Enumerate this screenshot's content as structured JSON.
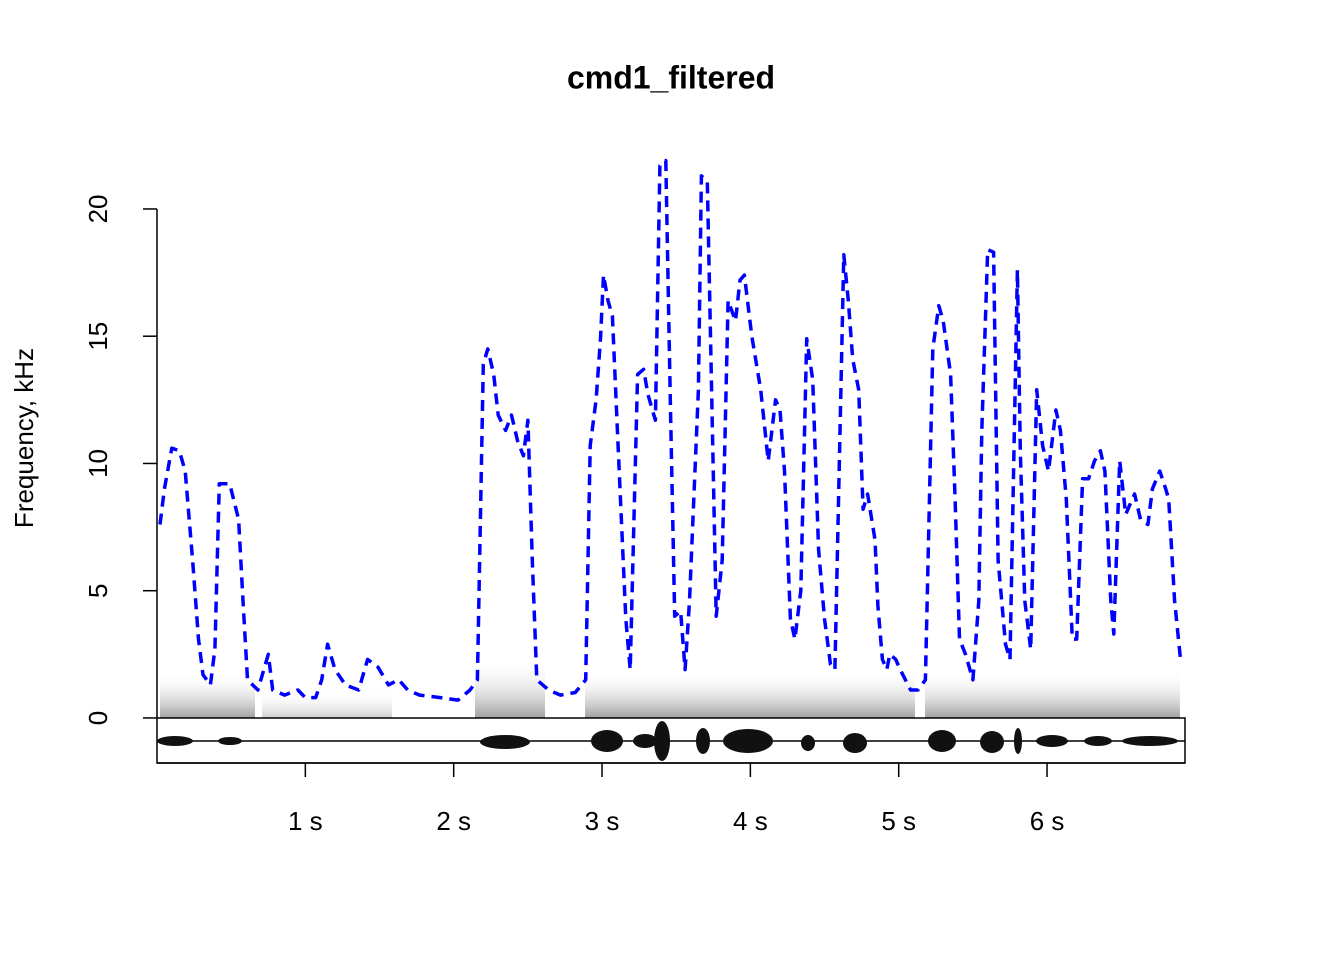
{
  "chart_data": {
    "type": "line",
    "title": "cmd1_filtered",
    "y_label": "Frequency, kHz",
    "color": "#0000ff",
    "line_style": "dashed",
    "xlim": [
      0,
      6.93
    ],
    "ylim": [
      -1.77,
      22.6
    ],
    "xticks": [
      {
        "value": 1,
        "label": "1 s"
      },
      {
        "value": 2,
        "label": "2 s"
      },
      {
        "value": 3,
        "label": "3 s"
      },
      {
        "value": 4,
        "label": "4 s"
      },
      {
        "value": 5,
        "label": "5 s"
      },
      {
        "value": 6,
        "label": "6 s"
      }
    ],
    "yticks": [
      0,
      5,
      10,
      15,
      20
    ],
    "x": [
      0.02,
      0.05,
      0.1,
      0.15,
      0.19,
      0.24,
      0.28,
      0.31,
      0.36,
      0.39,
      0.42,
      0.49,
      0.55,
      0.58,
      0.61,
      0.68,
      0.75,
      0.78,
      0.86,
      0.95,
      1.0,
      1.07,
      1.11,
      1.15,
      1.2,
      1.27,
      1.36,
      1.42,
      1.49,
      1.56,
      1.63,
      1.69,
      1.77,
      1.91,
      2.03,
      2.11,
      2.16,
      2.2,
      2.23,
      2.27,
      2.3,
      2.35,
      2.39,
      2.43,
      2.47,
      2.5,
      2.53,
      2.56,
      2.64,
      2.72,
      2.82,
      2.89,
      2.92,
      2.96,
      2.99,
      3.01,
      3.04,
      3.07,
      3.11,
      3.16,
      3.19,
      3.24,
      3.28,
      3.31,
      3.36,
      3.39,
      3.43,
      3.46,
      3.49,
      3.53,
      3.56,
      3.59,
      3.65,
      3.67,
      3.71,
      3.74,
      3.77,
      3.81,
      3.85,
      3.9,
      3.93,
      3.96,
      4.01,
      4.07,
      4.12,
      4.17,
      4.2,
      4.23,
      4.27,
      4.3,
      4.34,
      4.38,
      4.42,
      4.46,
      4.5,
      4.54,
      4.57,
      4.63,
      4.66,
      4.69,
      4.73,
      4.76,
      4.79,
      4.84,
      4.86,
      4.89,
      4.92,
      4.94,
      4.98,
      5.01,
      5.08,
      5.13,
      5.18,
      5.23,
      5.27,
      5.3,
      5.35,
      5.38,
      5.41,
      5.45,
      5.5,
      5.54,
      5.56,
      5.6,
      5.64,
      5.67,
      5.72,
      5.75,
      5.8,
      5.82,
      5.85,
      5.89,
      5.93,
      5.97,
      6.01,
      6.06,
      6.09,
      6.13,
      6.17,
      6.2,
      6.24,
      6.28,
      6.32,
      6.36,
      6.39,
      6.43,
      6.45,
      6.49,
      6.53,
      6.56,
      6.59,
      6.63,
      6.68,
      6.71,
      6.76,
      6.8,
      6.82,
      6.86,
      6.9
    ],
    "values": [
      7.6,
      9.0,
      10.6,
      10.5,
      9.7,
      6.2,
      3.1,
      1.7,
      1.3,
      2.7,
      9.2,
      9.2,
      7.8,
      4.6,
      1.5,
      1.1,
      2.5,
      1.1,
      0.9,
      1.1,
      0.8,
      0.8,
      1.5,
      2.9,
      1.9,
      1.3,
      1.1,
      2.3,
      2.0,
      1.3,
      1.5,
      1.1,
      0.9,
      0.8,
      0.7,
      1.1,
      1.5,
      13.9,
      14.5,
      13.5,
      11.9,
      11.3,
      11.9,
      10.9,
      10.3,
      11.7,
      6.2,
      1.5,
      1.1,
      0.9,
      1.0,
      1.5,
      10.7,
      12.5,
      14.9,
      17.4,
      16.4,
      15.8,
      10.5,
      3.9,
      1.9,
      13.5,
      13.7,
      12.7,
      11.7,
      21.7,
      21.9,
      12.5,
      4.0,
      4.2,
      1.9,
      4.6,
      12.9,
      21.3,
      21.1,
      12.5,
      4.0,
      6.2,
      16.4,
      15.6,
      17.2,
      17.4,
      15.0,
      12.9,
      10.1,
      12.5,
      12.1,
      9.7,
      3.9,
      3.1,
      5.0,
      14.9,
      13.3,
      6.6,
      3.9,
      2.1,
      1.9,
      18.2,
      16.4,
      14.1,
      12.9,
      8.2,
      8.8,
      7.0,
      4.4,
      2.3,
      1.9,
      2.5,
      2.3,
      1.9,
      1.1,
      1.1,
      1.5,
      14.5,
      16.2,
      15.6,
      13.5,
      8.6,
      3.1,
      2.5,
      1.5,
      4.6,
      11.3,
      18.4,
      18.3,
      6.2,
      2.9,
      2.3,
      17.6,
      10.5,
      4.6,
      2.7,
      12.9,
      10.7,
      9.7,
      12.1,
      11.3,
      8.6,
      3.1,
      3.1,
      9.4,
      9.4,
      10.1,
      10.5,
      9.7,
      4.6,
      3.3,
      10.1,
      8.0,
      8.4,
      8.8,
      7.8,
      7.6,
      9.0,
      9.7,
      9.0,
      8.6,
      4.6,
      2.3
    ]
  }
}
